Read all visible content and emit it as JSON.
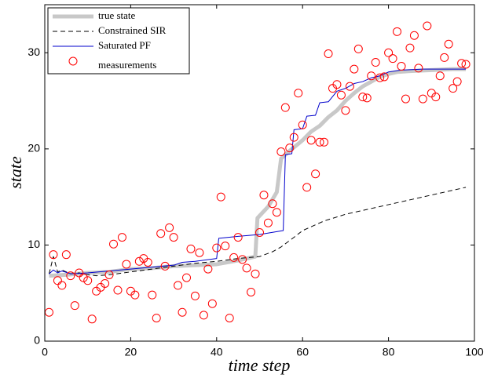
{
  "chart_data": {
    "type": "line",
    "xlabel": "time step",
    "ylabel": "state",
    "xlim": [
      0,
      100
    ],
    "ylim": [
      0,
      35
    ],
    "xticks": [
      0,
      20,
      40,
      60,
      80,
      100
    ],
    "yticks": [
      0,
      10,
      20,
      30
    ],
    "grid": false,
    "legend": "upper left",
    "series": [
      {
        "name": "true state",
        "color": "#c8c8c8",
        "line_style": "solid",
        "line_width": 5,
        "marker": "none",
        "x": [
          1,
          5,
          10,
          15,
          20,
          25,
          30,
          35,
          40,
          45,
          49,
          49.5,
          52,
          54,
          55,
          57,
          60,
          62,
          64,
          66,
          68,
          70,
          72,
          74,
          76,
          78,
          80,
          82,
          85,
          90,
          95,
          98
        ],
        "values": [
          6.8,
          6.9,
          7.1,
          7.2,
          7.5,
          7.6,
          7.8,
          7.9,
          8.0,
          8.4,
          8.8,
          12.8,
          14.0,
          15.5,
          19.0,
          19.8,
          20.9,
          21.8,
          22.4,
          23.3,
          24.0,
          25.0,
          25.8,
          26.5,
          27.0,
          27.5,
          27.8,
          28.0,
          28.1,
          28.2,
          28.3,
          28.3
        ]
      },
      {
        "name": "Constrained SIR",
        "color": "#000000",
        "line_style": "dashed",
        "line_width": 1,
        "marker": "none",
        "x": [
          1,
          2,
          3,
          4,
          6,
          8,
          10,
          12,
          15,
          20,
          25,
          30,
          35,
          40,
          45,
          50,
          53,
          55,
          58,
          60,
          65,
          70,
          75,
          80,
          85,
          90,
          95,
          98
        ],
        "values": [
          7.0,
          8.8,
          7.2,
          7.4,
          7.0,
          7.1,
          6.9,
          6.8,
          6.9,
          7.2,
          7.5,
          7.8,
          8.1,
          8.3,
          8.6,
          8.8,
          9.3,
          9.8,
          10.8,
          11.5,
          12.5,
          13.2,
          13.7,
          14.2,
          14.7,
          15.2,
          15.7,
          16.0
        ]
      },
      {
        "name": "Saturated PF",
        "color": "#0000cc",
        "line_style": "solid",
        "line_width": 1,
        "marker": "none",
        "x": [
          1,
          2,
          3,
          4,
          6,
          10,
          15,
          20,
          25,
          30,
          32,
          35,
          40,
          40.5,
          45,
          50,
          55.5,
          56,
          57.5,
          58,
          60,
          61,
          63,
          64,
          66,
          68,
          70,
          72,
          74,
          76,
          78,
          80,
          83,
          88,
          92,
          98
        ],
        "values": [
          7.0,
          7.4,
          7.1,
          7.3,
          7.0,
          7.1,
          7.3,
          7.5,
          7.7,
          7.9,
          8.2,
          8.3,
          8.6,
          10.7,
          10.9,
          11.1,
          11.5,
          19.4,
          19.5,
          22.0,
          22.1,
          23.4,
          23.5,
          24.8,
          24.9,
          26.0,
          26.3,
          26.8,
          27.0,
          27.4,
          27.6,
          28.0,
          28.2,
          28.3,
          28.3,
          28.3
        ]
      },
      {
        "name": "measurements",
        "color": "#ff0000",
        "line_style": "none",
        "line_width": 1,
        "marker": "circle",
        "x": [
          1,
          2,
          3,
          4,
          5,
          6,
          7,
          8,
          9,
          10,
          11,
          12,
          13,
          14,
          15,
          16,
          17,
          18,
          19,
          20,
          21,
          22,
          23,
          24,
          25,
          26,
          27,
          28,
          29,
          30,
          31,
          32,
          33,
          34,
          35,
          36,
          37,
          38,
          39,
          40,
          41,
          42,
          43,
          44,
          45,
          46,
          47,
          48,
          49,
          50,
          51,
          52,
          53,
          54,
          55,
          56,
          57,
          58,
          59,
          60,
          61,
          62,
          63,
          64,
          65,
          66,
          67,
          68,
          69,
          70,
          71,
          72,
          73,
          74,
          75,
          76,
          77,
          78,
          79,
          80,
          81,
          82,
          83,
          84,
          85,
          86,
          87,
          88,
          89,
          90,
          91,
          92,
          93,
          94,
          95,
          96,
          97,
          98
        ],
        "values": [
          3.0,
          9.0,
          6.3,
          5.8,
          9.0,
          6.8,
          3.7,
          7.1,
          6.6,
          6.3,
          2.3,
          5.2,
          5.6,
          6.0,
          6.9,
          10.1,
          5.3,
          10.8,
          8.0,
          5.2,
          4.8,
          8.3,
          8.6,
          8.2,
          4.8,
          2.4,
          11.2,
          7.8,
          11.8,
          10.8,
          5.8,
          3.0,
          6.6,
          9.6,
          4.7,
          9.2,
          2.7,
          7.5,
          3.9,
          9.7,
          15.0,
          9.9,
          2.4,
          8.7,
          10.8,
          8.5,
          7.6,
          5.1,
          7.0,
          11.3,
          15.2,
          12.3,
          14.3,
          13.4,
          19.7,
          24.3,
          20.1,
          21.2,
          25.8,
          22.5,
          16.0,
          20.9,
          17.4,
          20.7,
          20.7,
          29.9,
          26.3,
          26.7,
          25.6,
          24.0,
          26.5,
          28.3,
          30.4,
          25.4,
          25.3,
          27.6,
          29.0,
          27.4,
          27.5,
          30.0,
          29.4,
          32.2,
          28.6,
          25.2,
          30.5,
          31.8,
          28.4,
          25.2,
          32.8,
          25.8,
          25.4,
          27.6,
          29.5,
          30.9,
          26.3,
          27.0,
          28.9,
          28.8
        ]
      }
    ]
  }
}
